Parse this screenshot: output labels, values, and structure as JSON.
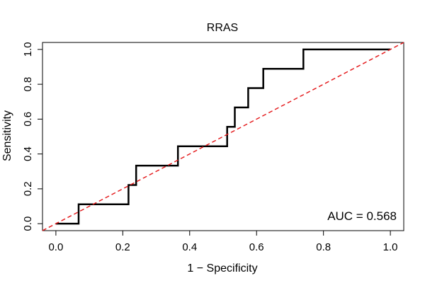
{
  "chart_data": {
    "type": "line",
    "title": "RRAS",
    "xlabel": "1 − Specificity",
    "ylabel": "Sensitivity",
    "xlim": [
      -0.04,
      1.04
    ],
    "ylim": [
      -0.04,
      1.04
    ],
    "xticks": [
      0.0,
      0.2,
      0.4,
      0.6,
      0.8,
      1.0
    ],
    "yticks": [
      0.0,
      0.2,
      0.4,
      0.6,
      0.8,
      1.0
    ],
    "xtick_labels": [
      "0.0",
      "0.2",
      "0.4",
      "0.6",
      "0.8",
      "1.0"
    ],
    "ytick_labels": [
      "0.0",
      "0.2",
      "0.4",
      "0.6",
      "0.8",
      "1.0"
    ],
    "series": [
      {
        "name": "ROC curve",
        "color": "#000000",
        "style": "solid",
        "x": [
          0.0,
          0.068,
          0.068,
          0.217,
          0.217,
          0.24,
          0.24,
          0.365,
          0.365,
          0.512,
          0.512,
          0.535,
          0.535,
          0.56,
          0.56,
          0.575,
          0.575,
          0.62,
          0.62,
          0.74,
          0.74,
          1.0
        ],
        "y": [
          0.0,
          0.0,
          0.111,
          0.111,
          0.222,
          0.222,
          0.333,
          0.333,
          0.444,
          0.444,
          0.556,
          0.556,
          0.667,
          0.667,
          0.667,
          0.667,
          0.778,
          0.778,
          0.889,
          0.889,
          1.0,
          1.0
        ]
      },
      {
        "name": "Reference diagonal",
        "color": "#e41a1c",
        "style": "dashed",
        "x": [
          -0.04,
          1.04
        ],
        "y": [
          -0.04,
          1.04
        ]
      }
    ],
    "annotation": "AUC = 0.568"
  }
}
